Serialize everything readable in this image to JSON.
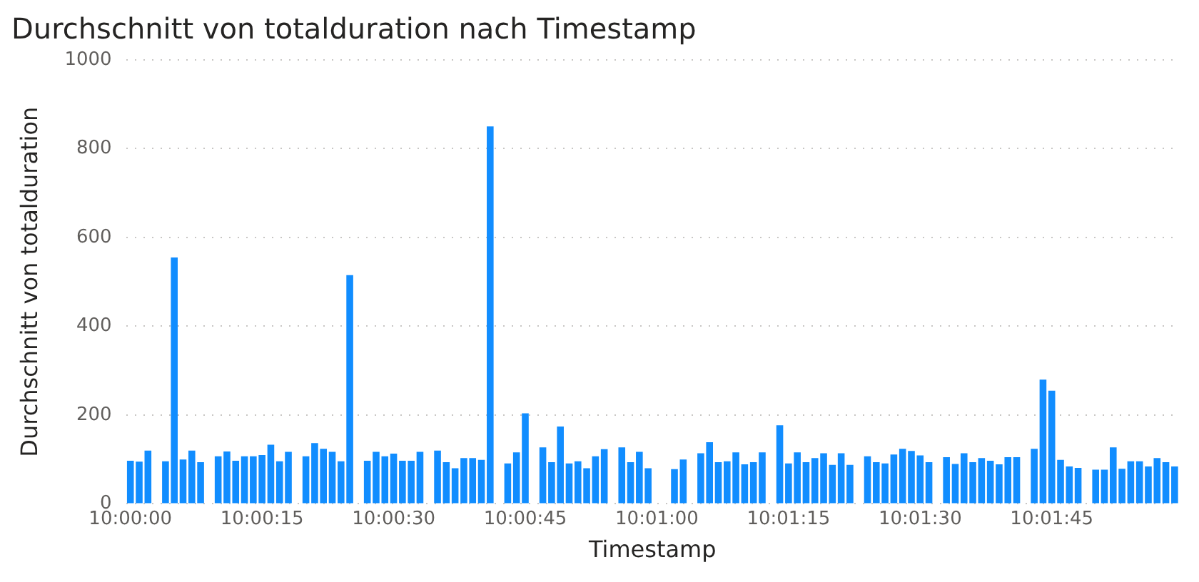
{
  "chart_data": {
    "type": "bar",
    "title": "Durchschnitt von totalduration nach Timestamp",
    "xlabel": "Timestamp",
    "ylabel": "Durchschnitt von totalduration",
    "categories": [
      "10:00:00",
      null,
      null,
      null,
      null,
      null,
      null,
      null,
      null,
      null,
      null,
      null,
      null,
      null,
      null,
      "10:00:15",
      null,
      null,
      null,
      null,
      null,
      null,
      null,
      null,
      null,
      null,
      null,
      null,
      null,
      null,
      "10:00:30",
      null,
      null,
      null,
      null,
      null,
      null,
      null,
      null,
      null,
      null,
      null,
      null,
      null,
      null,
      "10:00:45",
      null,
      null,
      null,
      null,
      null,
      null,
      null,
      null,
      null,
      null,
      null,
      null,
      null,
      null,
      "10:01:00",
      null,
      null,
      null,
      null,
      null,
      null,
      null,
      null,
      null,
      null,
      null,
      null,
      null,
      null,
      "10:01:15",
      null,
      null,
      null,
      null,
      null,
      null,
      null,
      null,
      null,
      null,
      null,
      null,
      null,
      null,
      "10:01:30",
      null,
      null,
      null,
      null,
      null,
      null,
      null,
      null,
      null,
      null,
      null,
      null,
      null,
      null,
      "10:01:45",
      null,
      null,
      null,
      null,
      null,
      null,
      null,
      null,
      null,
      null,
      null,
      null,
      null,
      null
    ],
    "values": [
      97,
      95,
      120,
      null,
      96,
      555,
      100,
      120,
      94,
      null,
      107,
      118,
      97,
      107,
      107,
      110,
      133,
      96,
      117,
      null,
      107,
      137,
      124,
      117,
      96,
      515,
      null,
      97,
      117,
      107,
      113,
      97,
      97,
      117,
      null,
      120,
      94,
      80,
      103,
      103,
      99,
      850,
      null,
      91,
      116,
      204,
      null,
      127,
      94,
      174,
      91,
      96,
      80,
      107,
      123,
      null,
      127,
      94,
      117,
      80,
      null,
      null,
      78,
      100,
      null,
      114,
      139,
      94,
      96,
      116,
      89,
      94,
      116,
      null,
      177,
      91,
      116,
      94,
      103,
      114,
      88,
      114,
      88,
      null,
      107,
      94,
      91,
      111,
      124,
      119,
      109,
      94,
      null,
      105,
      90,
      114,
      94,
      103,
      97,
      89,
      105,
      105,
      null,
      124,
      280,
      255,
      99,
      84,
      81,
      null,
      77,
      77,
      127,
      79,
      96,
      96,
      84,
      103,
      94,
      84
    ],
    "color": "#118dff",
    "ylim": [
      0,
      1000
    ],
    "yticks": [
      0,
      200,
      400,
      600,
      800,
      1000
    ],
    "grid": "y"
  }
}
